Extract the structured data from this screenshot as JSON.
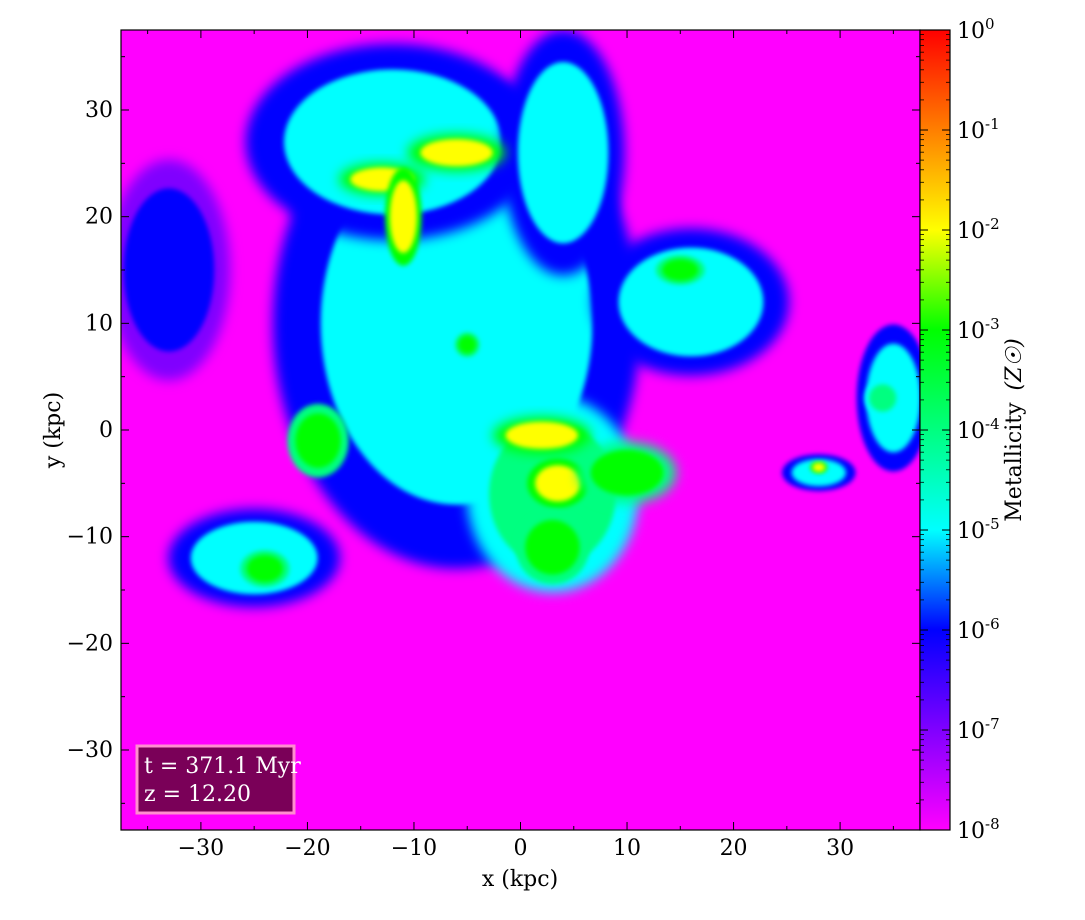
{
  "chart_data": {
    "type": "heatmap",
    "title": "",
    "xlabel": "x  (kpc)",
    "ylabel": "y  (kpc)",
    "xlim": [
      -37.5,
      37.5
    ],
    "ylim": [
      -37.5,
      37.5
    ],
    "x_ticks": [
      -30,
      -20,
      -10,
      0,
      10,
      20,
      30
    ],
    "y_ticks": [
      -30,
      -20,
      -10,
      0,
      10,
      20,
      30
    ],
    "x_tick_labels": [
      "−30",
      "−20",
      "−10",
      "0",
      "10",
      "20",
      "30"
    ],
    "y_tick_labels": [
      "−30",
      "−20",
      "−10",
      "0",
      "10",
      "20",
      "30"
    ],
    "background_color": "#ff00ff",
    "colorbar": {
      "label": "Metallicity",
      "unit_label": "(Z☉)",
      "scale": "log",
      "range": [
        1e-08,
        1
      ],
      "tick_labels": [
        {
          "base": "10",
          "exp": "0"
        },
        {
          "base": "10",
          "exp": "-1"
        },
        {
          "base": "10",
          "exp": "-2"
        },
        {
          "base": "10",
          "exp": "-3"
        },
        {
          "base": "10",
          "exp": "-4"
        },
        {
          "base": "10",
          "exp": "-5"
        },
        {
          "base": "10",
          "exp": "-6"
        },
        {
          "base": "10",
          "exp": "-7"
        },
        {
          "base": "10",
          "exp": "-8"
        }
      ],
      "colors_top_to_bottom": [
        "#ff0000",
        "#ff7f00",
        "#ffff00",
        "#00ff00",
        "#00ffff",
        "#0000ff",
        "#ff00ff"
      ]
    },
    "annotation": {
      "line1": "t = 371.1 Myr",
      "line2": "z = 12.20",
      "box_fill": "#7a0058",
      "box_edge": "#ff8ccf"
    },
    "regions": [
      {
        "name": "central-outflow",
        "x": -6,
        "y": 10,
        "rx": 15,
        "ry": 20,
        "log_z": -5
      },
      {
        "name": "upper-cloud",
        "x": -12,
        "y": 27,
        "rx": 12,
        "ry": 8,
        "log_z": -5
      },
      {
        "name": "upper-right-cloud",
        "x": 4,
        "y": 26,
        "rx": 5,
        "ry": 10,
        "log_z": -5
      },
      {
        "name": "lower-clump",
        "x": 3,
        "y": -6,
        "rx": 7,
        "ry": 8,
        "log_z": -4
      },
      {
        "name": "right-cloud",
        "x": 16,
        "y": 12,
        "rx": 8,
        "ry": 6,
        "log_z": -5
      },
      {
        "name": "far-right-cloud",
        "x": 35,
        "y": 3,
        "rx": 3,
        "ry": 6,
        "log_z": -5
      },
      {
        "name": "lower-left-cloud",
        "x": -25,
        "y": -12,
        "rx": 7,
        "ry": 4,
        "log_z": -5
      },
      {
        "name": "small-right-clump",
        "x": 28,
        "y": -4,
        "rx": 3,
        "ry": 1.5,
        "log_z": -5
      },
      {
        "name": "left-edge-cloud",
        "x": -33,
        "y": 15,
        "rx": 5,
        "ry": 9,
        "log_z": -6
      },
      {
        "name": "star-burst-arm-1",
        "x": -6,
        "y": 26,
        "rx": 4,
        "ry": 1.5,
        "log_z": -2
      },
      {
        "name": "star-burst-arm-2",
        "x": -13,
        "y": 23.5,
        "rx": 3.5,
        "ry": 1.3,
        "log_z": -2
      },
      {
        "name": "star-burst-arm-3",
        "x": -11,
        "y": 20,
        "rx": 1.5,
        "ry": 4,
        "log_z": -2
      },
      {
        "name": "clump-a",
        "x": -19,
        "y": -1,
        "rx": 2.5,
        "ry": 3,
        "log_z": -3
      },
      {
        "name": "clump-b",
        "x": 2,
        "y": -0.5,
        "rx": 4,
        "ry": 1.5,
        "log_z": -2
      },
      {
        "name": "clump-c",
        "x": 3.5,
        "y": -5,
        "rx": 2.5,
        "ry": 2,
        "log_z": -2
      },
      {
        "name": "clump-d",
        "x": 10,
        "y": -4,
        "rx": 4,
        "ry": 2.5,
        "log_z": -3
      },
      {
        "name": "clump-e",
        "x": 15,
        "y": 15,
        "rx": 2,
        "ry": 1.2,
        "log_z": -3
      },
      {
        "name": "clump-f",
        "x": 34,
        "y": 3,
        "rx": 1.5,
        "ry": 1.5,
        "log_z": -4
      },
      {
        "name": "clump-g",
        "x": 3,
        "y": -11,
        "rx": 3,
        "ry": 3,
        "log_z": -3
      },
      {
        "name": "clump-h",
        "x": -5,
        "y": 8,
        "rx": 1,
        "ry": 1,
        "log_z": -3
      },
      {
        "name": "clump-i",
        "x": 28,
        "y": -3.5,
        "rx": 0.7,
        "ry": 0.5,
        "log_z": -2
      },
      {
        "name": "clump-j",
        "x": -24,
        "y": -13,
        "rx": 2,
        "ry": 1.5,
        "log_z": -3
      }
    ]
  }
}
